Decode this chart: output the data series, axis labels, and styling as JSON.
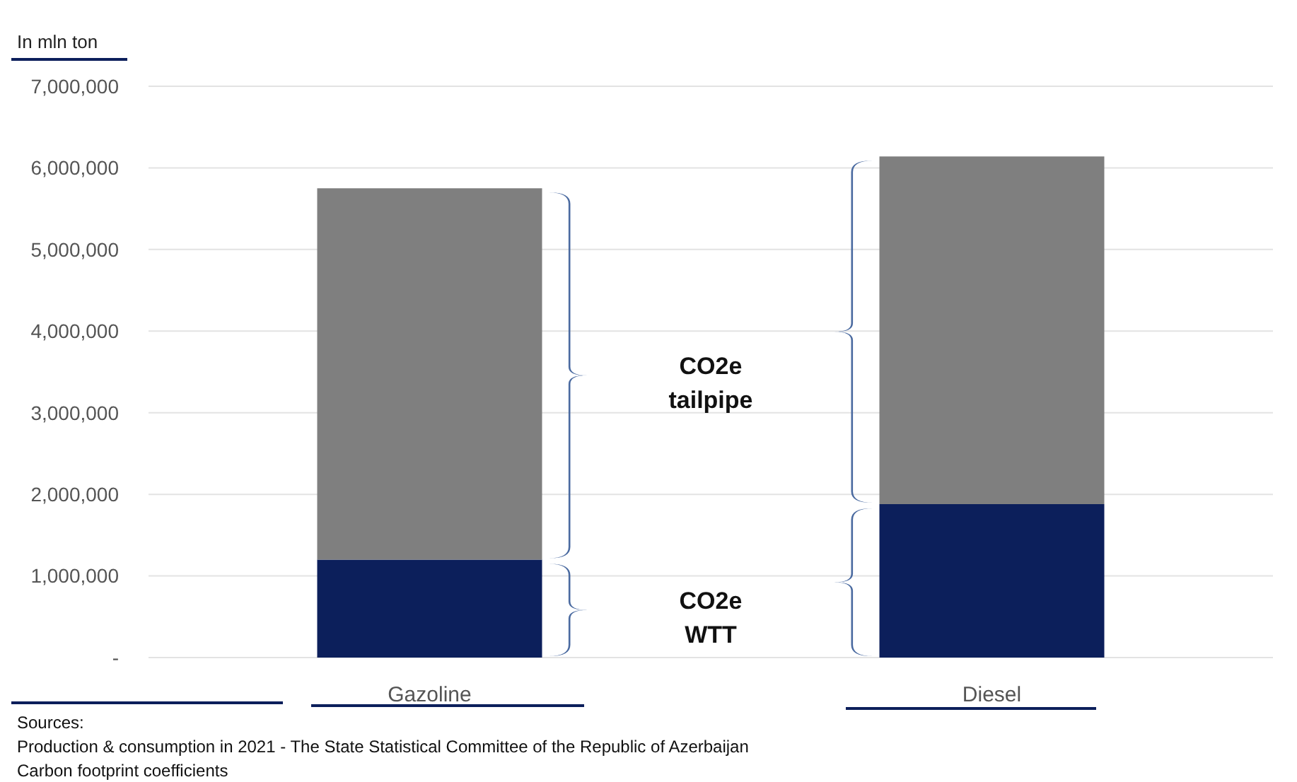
{
  "chart_data": {
    "type": "bar",
    "stacked": true,
    "ylabel": "In mln  ton",
    "categories": [
      "Gazoline",
      "Diesel"
    ],
    "series": [
      {
        "color": "#0c1f5b",
        "values": [
          1200000,
          1880000
        ]
      },
      {
        "color": "#7f7f7f",
        "values": [
          4550000,
          4260000
        ]
      }
    ],
    "ylim": [
      0,
      7000000
    ],
    "yticks": [
      {
        "value": 0,
        "label": "-"
      },
      {
        "value": 1000000,
        "label": "1,000,000"
      },
      {
        "value": 2000000,
        "label": "2,000,000"
      },
      {
        "value": 3000000,
        "label": "3,000,000"
      },
      {
        "value": 4000000,
        "label": "4,000,000"
      },
      {
        "value": 5000000,
        "label": "5,000,000"
      },
      {
        "value": 6000000,
        "label": "6,000,000"
      },
      {
        "value": 7000000,
        "label": "7,000,000"
      }
    ],
    "grid": "y",
    "annotations": [
      "CO2e WTT",
      "CO2e tailpipe",
      "Sources:",
      "Production & consumption in 2021 - The State Statistical Committee of the Republic of Azerbaijan",
      "Carbon footprint coefficients"
    ]
  }
}
